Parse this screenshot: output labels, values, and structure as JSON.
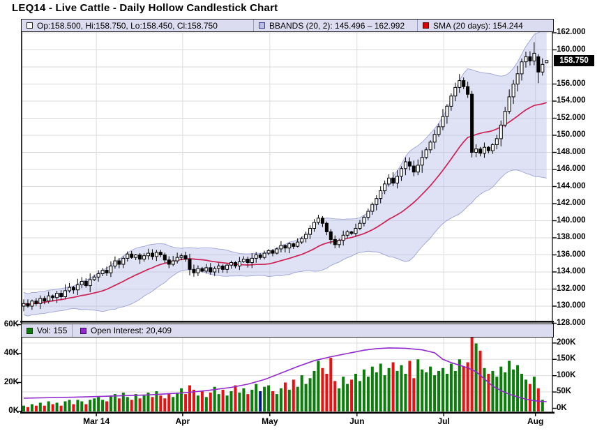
{
  "title": "LEQ14 - Live Cattle - Daily Hollow Candlestick Chart",
  "legend_top": {
    "ohlc": "Op:158.500, Hi:158.750, Lo:158.450, Cl:158.750",
    "bbands": "BBANDS (20, 2): 145.496 – 162.992",
    "sma": "SMA (20 days): 154.244"
  },
  "legend_bottom": {
    "vol": "Vol: 155",
    "oi": "Open Interest: 20,409"
  },
  "price_marker": "158.750",
  "colors": {
    "legend_bg": "#dcdcf0",
    "band_fill": "#b9bce6",
    "band_edge": "#8f95cf",
    "sma_line": "#cc2255",
    "sma_icon": "#dd0000",
    "vol_up": "#0b7d0b",
    "vol_down": "#e81010",
    "vol_special": "#001а8c",
    "oi_line": "#9229cf",
    "grid": "#d9d9d9",
    "axis": "#000000",
    "candle_up_fill": "#ffffff",
    "candle_down_fill": "#000000"
  },
  "chart_data": {
    "type": "candlestick",
    "title": "LEQ14 - Live Cattle - Daily Hollow Candlestick Chart",
    "subpanels": [
      "price+bbands+sma",
      "volume+open-interest"
    ],
    "x_axis_months": [
      [
        "Mar 14",
        17.5
      ],
      [
        "Apr",
        38.3
      ],
      [
        "May",
        59.3
      ],
      [
        "Jun",
        80.3
      ],
      [
        "Jul",
        101.2
      ],
      [
        "Aug",
        123.3
      ]
    ],
    "price_axis": {
      "min": 128,
      "max": 162,
      "grid_step": 2,
      "tick_values": [
        162,
        160,
        156,
        154,
        152,
        150,
        148,
        146,
        144,
        142,
        140,
        138,
        136,
        134,
        132,
        130,
        128
      ]
    },
    "volume_axis_ticks": [
      [
        60,
        "60K"
      ],
      [
        40,
        "40K"
      ],
      [
        20,
        "20K"
      ],
      [
        0,
        "0K"
      ]
    ],
    "oi_axis_ticks": [
      [
        200,
        "200K"
      ],
      [
        150,
        "150K"
      ],
      [
        100,
        "100K"
      ],
      [
        50,
        "50K"
      ],
      [
        0,
        "0K"
      ]
    ],
    "last": {
      "open": 158.5,
      "high": 158.75,
      "low": 158.45,
      "close": 158.75,
      "volume": 155,
      "open_interest": 20409,
      "sma20": 154.244,
      "bband_lower": 145.496,
      "bband_upper": 162.992
    },
    "closes": [
      130.3,
      130.0,
      130.6,
      130.3,
      130.9,
      130.6,
      131.2,
      131.0,
      131.5,
      131.1,
      131.8,
      132.2,
      131.9,
      132.5,
      132.9,
      132.4,
      133.1,
      133.4,
      133.8,
      134.2,
      133.9,
      134.7,
      135.3,
      134.9,
      135.6,
      136.1,
      135.7,
      136.0,
      135.5,
      135.9,
      136.2,
      135.8,
      136.3,
      136.0,
      135.4,
      134.9,
      135.3,
      135.7,
      135.9,
      135.5,
      134.3,
      133.9,
      134.4,
      134.1,
      134.5,
      134.0,
      134.4,
      134.7,
      134.3,
      134.8,
      135.1,
      134.7,
      135.2,
      135.5,
      135.1,
      135.6,
      136.0,
      135.7,
      136.2,
      136.5,
      136.2,
      136.7,
      137.1,
      136.8,
      137.3,
      137.0,
      137.5,
      137.9,
      138.4,
      139.1,
      139.8,
      140.3,
      139.7,
      138.7,
      137.8,
      137.2,
      137.7,
      138.3,
      138.7,
      138.5,
      139.1,
      139.7,
      140.4,
      141.1,
      141.9,
      142.6,
      143.5,
      144.3,
      145.0,
      144.4,
      145.2,
      146.1,
      146.9,
      146.4,
      145.7,
      146.5,
      147.4,
      148.3,
      149.2,
      150.1,
      151.0,
      152.2,
      153.4,
      154.6,
      155.6,
      156.4,
      155.7,
      154.8,
      148.0,
      148.4,
      147.9,
      148.6,
      148.2,
      148.9,
      149.6,
      151.2,
      152.8,
      154.5,
      156.0,
      157.2,
      158.6,
      159.2,
      158.7,
      159.6,
      157.4,
      158.3,
      158.75
    ],
    "ohlc_overrides": {
      "0": [
        130.0,
        130.8,
        129.4,
        130.3
      ],
      "108": [
        154.8,
        155.2,
        147.4,
        148.0
      ],
      "123": [
        158.7,
        160.9,
        158.2,
        159.6
      ],
      "124": [
        159.2,
        159.5,
        156.1,
        157.4
      ],
      "126": [
        158.5,
        158.75,
        158.45,
        158.75
      ]
    },
    "volumes_k": [
      4,
      3,
      5,
      4,
      6,
      4,
      7,
      5,
      6,
      4,
      7,
      8,
      5,
      8,
      7,
      5,
      8,
      9,
      10,
      8,
      7,
      11,
      12,
      9,
      13,
      10,
      8,
      12,
      9,
      11,
      13,
      10,
      14,
      11,
      9,
      12,
      10,
      13,
      16,
      12,
      18,
      15,
      11,
      14,
      10,
      13,
      17,
      12,
      15,
      11,
      14,
      18,
      13,
      16,
      12,
      15,
      19,
      14,
      17,
      18,
      14,
      12,
      16,
      20,
      15,
      22,
      17,
      25,
      19,
      23,
      28,
      35,
      30,
      26,
      37,
      21,
      16,
      24,
      19,
      22,
      26,
      21,
      29,
      24,
      31,
      27,
      33,
      25,
      30,
      34,
      28,
      32,
      26,
      35,
      23,
      36,
      29,
      27,
      31,
      25,
      28,
      30,
      26,
      33,
      28,
      36,
      31,
      34,
      52,
      47,
      42,
      30,
      26,
      28,
      24,
      31,
      27,
      35,
      29,
      32,
      26,
      22,
      19,
      24,
      16,
      8,
      0.2
    ],
    "special_volume_index": 57,
    "open_interest_points_k": [
      [
        0,
        31
      ],
      [
        12,
        34
      ],
      [
        20,
        37
      ],
      [
        30,
        41
      ],
      [
        38,
        47
      ],
      [
        44,
        54
      ],
      [
        50,
        64
      ],
      [
        54,
        74
      ],
      [
        58,
        88
      ],
      [
        62,
        108
      ],
      [
        66,
        128
      ],
      [
        70,
        146
      ],
      [
        74,
        158
      ],
      [
        78,
        168
      ],
      [
        82,
        178
      ],
      [
        85,
        183
      ],
      [
        88,
        185
      ],
      [
        92,
        184
      ],
      [
        96,
        179
      ],
      [
        99,
        170
      ],
      [
        101,
        150
      ],
      [
        103,
        140
      ],
      [
        105,
        132
      ],
      [
        107,
        124
      ],
      [
        109,
        112
      ],
      [
        111,
        90
      ],
      [
        113,
        68
      ],
      [
        115,
        54
      ],
      [
        117,
        43
      ],
      [
        119,
        35
      ],
      [
        121,
        28
      ],
      [
        123,
        23
      ],
      [
        125,
        21
      ],
      [
        126,
        20.4
      ]
    ],
    "bbands_params": {
      "period": 20,
      "stddev": 2
    },
    "sma_period": 20
  }
}
